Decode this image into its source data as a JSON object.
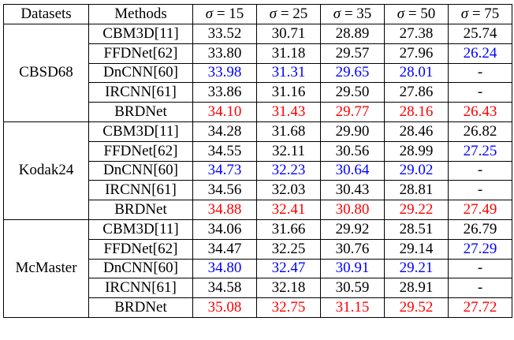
{
  "columns": {
    "datasets": "Datasets",
    "methods": "Methods",
    "sigma_symbol": "σ",
    "sigma_levels": [
      "= 15",
      "= 25",
      "= 35",
      "= 50",
      "= 75"
    ]
  },
  "colors": {
    "best": "#ff0000",
    "second": "#0000ff",
    "normal": "#000000"
  },
  "groups": [
    {
      "dataset": "CBSD68",
      "rows": [
        {
          "method": "CBM3D[11]",
          "values": [
            "33.52",
            "30.71",
            "28.89",
            "27.38",
            "25.74"
          ],
          "styles": [
            "n",
            "n",
            "n",
            "n",
            "n"
          ]
        },
        {
          "method": "FFDNet[62]",
          "values": [
            "33.80",
            "31.18",
            "29.57",
            "27.96",
            "26.24"
          ],
          "styles": [
            "n",
            "n",
            "n",
            "n",
            "blue"
          ]
        },
        {
          "method": "DnCNN[60]",
          "values": [
            "33.98",
            "31.31",
            "29.65",
            "28.01",
            "-"
          ],
          "styles": [
            "blue",
            "blue",
            "blue",
            "blue",
            "n"
          ]
        },
        {
          "method": "IRCNN[61]",
          "values": [
            "33.86",
            "31.16",
            "29.50",
            "27.86",
            "-"
          ],
          "styles": [
            "n",
            "n",
            "n",
            "n",
            "n"
          ]
        },
        {
          "method": "BRDNet",
          "values": [
            "34.10",
            "31.43",
            "29.77",
            "28.16",
            "26.43"
          ],
          "styles": [
            "red",
            "red",
            "red",
            "red",
            "red"
          ]
        }
      ]
    },
    {
      "dataset": "Kodak24",
      "rows": [
        {
          "method": "CBM3D[11]",
          "values": [
            "34.28",
            "31.68",
            "29.90",
            "28.46",
            "26.82"
          ],
          "styles": [
            "n",
            "n",
            "n",
            "n",
            "n"
          ]
        },
        {
          "method": "FFDNet[62]",
          "values": [
            "34.55",
            "32.11",
            "30.56",
            "28.99",
            "27.25"
          ],
          "styles": [
            "n",
            "n",
            "n",
            "n",
            "blue"
          ]
        },
        {
          "method": "DnCNN[60]",
          "values": [
            "34.73",
            "32.23",
            "30.64",
            "29.02",
            "-"
          ],
          "styles": [
            "blue",
            "blue",
            "blue",
            "blue",
            "n"
          ]
        },
        {
          "method": "IRCNN[61]",
          "values": [
            "34.56",
            "32.03",
            "30.43",
            "28.81",
            "-"
          ],
          "styles": [
            "n",
            "n",
            "n",
            "n",
            "n"
          ]
        },
        {
          "method": "BRDNet",
          "values": [
            "34.88",
            "32.41",
            "30.80",
            "29.22",
            "27.49"
          ],
          "styles": [
            "red",
            "red",
            "red",
            "red",
            "red"
          ]
        }
      ]
    },
    {
      "dataset": "McMaster",
      "rows": [
        {
          "method": "CBM3D[11]",
          "values": [
            "34.06",
            "31.66",
            "29.92",
            "28.51",
            "26.79"
          ],
          "styles": [
            "n",
            "n",
            "n",
            "n",
            "n"
          ]
        },
        {
          "method": "FFDNet[62]",
          "values": [
            "34.47",
            "32.25",
            "30.76",
            "29.14",
            "27.29"
          ],
          "styles": [
            "n",
            "n",
            "n",
            "n",
            "blue"
          ]
        },
        {
          "method": "DnCNN[60]",
          "values": [
            "34.80",
            "32.47",
            "30.91",
            "29.21",
            "-"
          ],
          "styles": [
            "blue",
            "blue",
            "blue",
            "blue",
            "n"
          ]
        },
        {
          "method": "IRCNN[61]",
          "values": [
            "34.58",
            "32.18",
            "30.59",
            "28.91",
            "-"
          ],
          "styles": [
            "n",
            "n",
            "n",
            "n",
            "n"
          ]
        },
        {
          "method": "BRDNet",
          "values": [
            "35.08",
            "32.75",
            "31.15",
            "29.52",
            "27.72"
          ],
          "styles": [
            "red",
            "red",
            "red",
            "red",
            "red"
          ]
        }
      ]
    }
  ]
}
